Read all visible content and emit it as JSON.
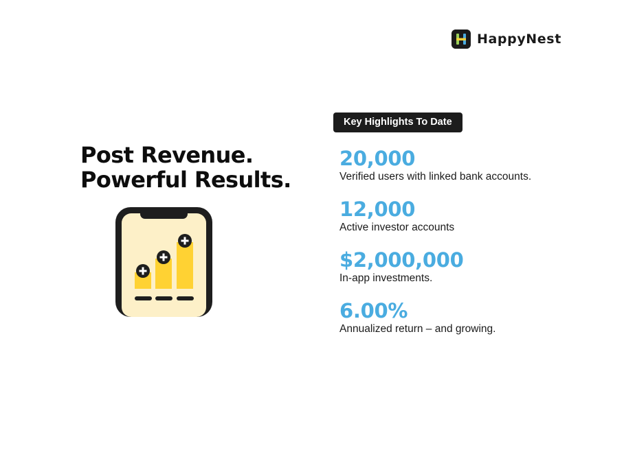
{
  "brand": {
    "name": "HappyNest",
    "colors": {
      "green": "#9bd15a",
      "blue": "#4aace0",
      "dark": "#1b1b1b"
    }
  },
  "headline": {
    "line1": "Post Revenue.",
    "line2": "Powerful Results."
  },
  "highlights": {
    "badge": "Key Highlights To Date",
    "items": [
      {
        "value": "20,000",
        "label": "Verified users with linked bank accounts."
      },
      {
        "value": "12,000",
        "label": "Active investor accounts"
      },
      {
        "value": "$2,000,000",
        "label": "In-app investments."
      },
      {
        "value": "6.00%",
        "label": "Annualized return – and growing."
      }
    ]
  },
  "illustration": {
    "icon": "phone-growth-chart-icon",
    "bar_levels": [
      0.3,
      0.55,
      0.85
    ],
    "colors": {
      "screen": "#fdf0c8",
      "bar": "#ffd233",
      "frame": "#1e1e1e"
    }
  }
}
